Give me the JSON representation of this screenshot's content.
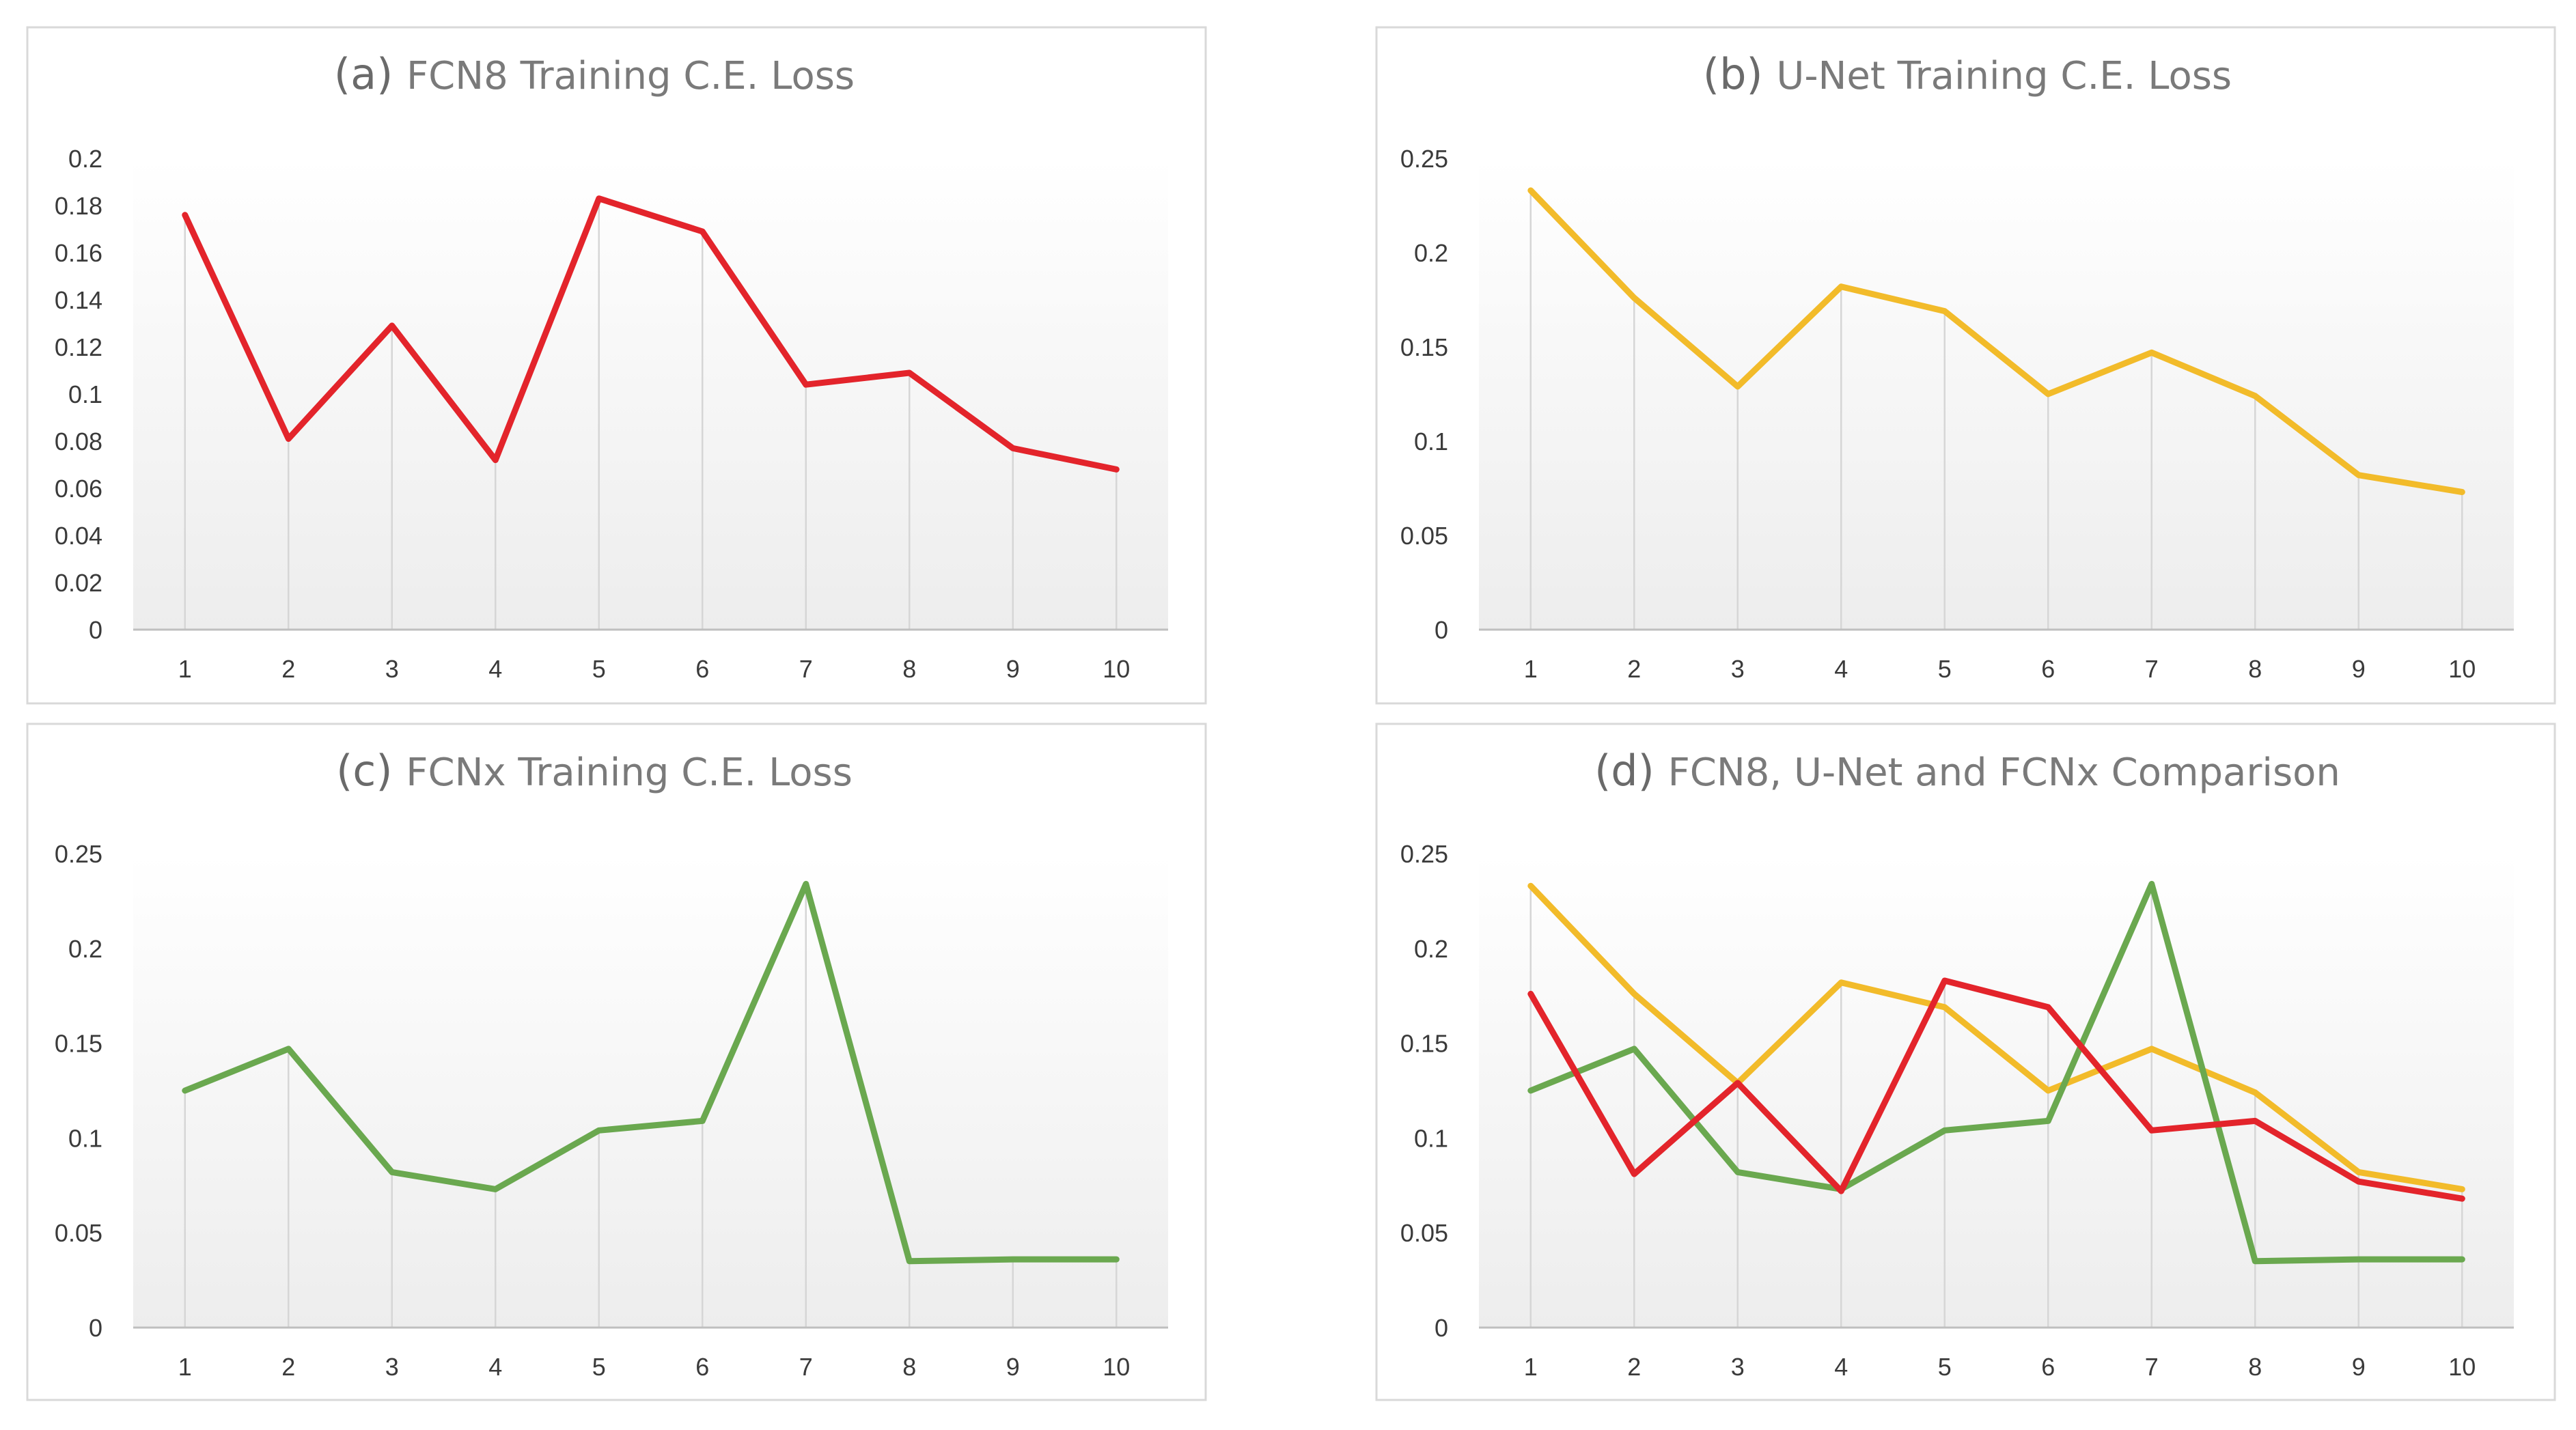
{
  "colors": {
    "fcn8": "#e3242b",
    "unet": "#f2bb2a",
    "fcnx": "#6aa84f"
  },
  "chart_data": [
    {
      "type": "line",
      "title_prefix": "(a)",
      "title": "FCN8 Training  C.E.  Loss",
      "categories": [
        "1",
        "2",
        "3",
        "4",
        "5",
        "6",
        "7",
        "8",
        "9",
        "10"
      ],
      "ylim": [
        0,
        0.2
      ],
      "yticks": [
        "0",
        "0.02",
        "0.04",
        "0.06",
        "0.08",
        "0.1",
        "0.12",
        "0.14",
        "0.16",
        "0.18",
        "0.2"
      ],
      "series": [
        {
          "name": "FCN8",
          "color_key": "fcn8",
          "values": [
            0.176,
            0.081,
            0.129,
            0.072,
            0.183,
            0.169,
            0.104,
            0.109,
            0.077,
            0.068
          ]
        }
      ]
    },
    {
      "type": "line",
      "title_prefix": "(b)",
      "title": "U-Net Training C.E.  Loss",
      "categories": [
        "1",
        "2",
        "3",
        "4",
        "5",
        "6",
        "7",
        "8",
        "9",
        "10"
      ],
      "ylim": [
        0,
        0.25
      ],
      "yticks": [
        "0",
        "0.05",
        "0.1",
        "0.15",
        "0.2",
        "0.25"
      ],
      "series": [
        {
          "name": "U-Net",
          "color_key": "unet",
          "values": [
            0.233,
            0.176,
            0.129,
            0.182,
            0.169,
            0.125,
            0.147,
            0.124,
            0.082,
            0.073
          ]
        }
      ]
    },
    {
      "type": "line",
      "title_prefix": "(c)",
      "title": "FCNx Training  C.E.  Loss",
      "categories": [
        "1",
        "2",
        "3",
        "4",
        "5",
        "6",
        "7",
        "8",
        "9",
        "10"
      ],
      "ylim": [
        0,
        0.25
      ],
      "yticks": [
        "0",
        "0.05",
        "0.1",
        "0.15",
        "0.2",
        "0.25"
      ],
      "series": [
        {
          "name": "FCNx",
          "color_key": "fcnx",
          "values": [
            0.125,
            0.147,
            0.082,
            0.073,
            0.104,
            0.109,
            0.234,
            0.035,
            0.036,
            0.036
          ]
        }
      ]
    },
    {
      "type": "line",
      "title_prefix": "(d)",
      "title": "FCN8, U-Net and FCNx Comparison",
      "categories": [
        "1",
        "2",
        "3",
        "4",
        "5",
        "6",
        "7",
        "8",
        "9",
        "10"
      ],
      "ylim": [
        0,
        0.25
      ],
      "yticks": [
        "0",
        "0.05",
        "0.1",
        "0.15",
        "0.2",
        "0.25"
      ],
      "series": [
        {
          "name": "U-Net",
          "color_key": "unet",
          "values": [
            0.233,
            0.176,
            0.129,
            0.182,
            0.169,
            0.125,
            0.147,
            0.124,
            0.082,
            0.073
          ]
        },
        {
          "name": "FCNx",
          "color_key": "fcnx",
          "values": [
            0.125,
            0.147,
            0.082,
            0.073,
            0.104,
            0.109,
            0.234,
            0.035,
            0.036,
            0.036
          ]
        },
        {
          "name": "FCN8",
          "color_key": "fcn8",
          "values": [
            0.176,
            0.081,
            0.129,
            0.072,
            0.183,
            0.169,
            0.104,
            0.109,
            0.077,
            0.068
          ]
        }
      ]
    }
  ]
}
